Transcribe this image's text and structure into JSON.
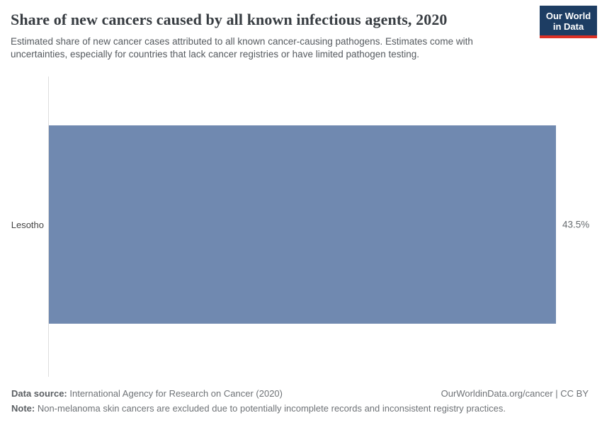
{
  "header": {
    "title": "Share of new cancers caused by all known infectious agents, 2020",
    "subtitle": "Estimated share of new cancer cases attributed to all known cancer-causing pathogens. Estimates come with uncertainties, especially for countries that lack cancer registries or have limited pathogen testing.",
    "logo": {
      "line1": "Our World",
      "line2": "in Data"
    }
  },
  "chart_data": {
    "type": "bar",
    "orientation": "horizontal",
    "categories": [
      "Lesotho"
    ],
    "values": [
      43.5
    ],
    "value_labels": [
      "43.5%"
    ],
    "unit": "%",
    "xlim": [
      0,
      43.5
    ],
    "grid": false,
    "legend": "none",
    "title": "Share of new cancers caused by all known infectious agents, 2020"
  },
  "colors": {
    "bar": "#7089b0",
    "logo_bg": "#1d3d63",
    "logo_accent": "#dc3125",
    "axis_line": "#dedede"
  },
  "footer": {
    "source_label": "Data source:",
    "source_text": " International Agency for Research on Cancer (2020)",
    "license_text": "OurWorldinData.org/cancer | CC BY",
    "note_label": "Note:",
    "note_text": " Non-melanoma skin cancers are excluded due to potentially incomplete records and inconsistent registry practices."
  }
}
